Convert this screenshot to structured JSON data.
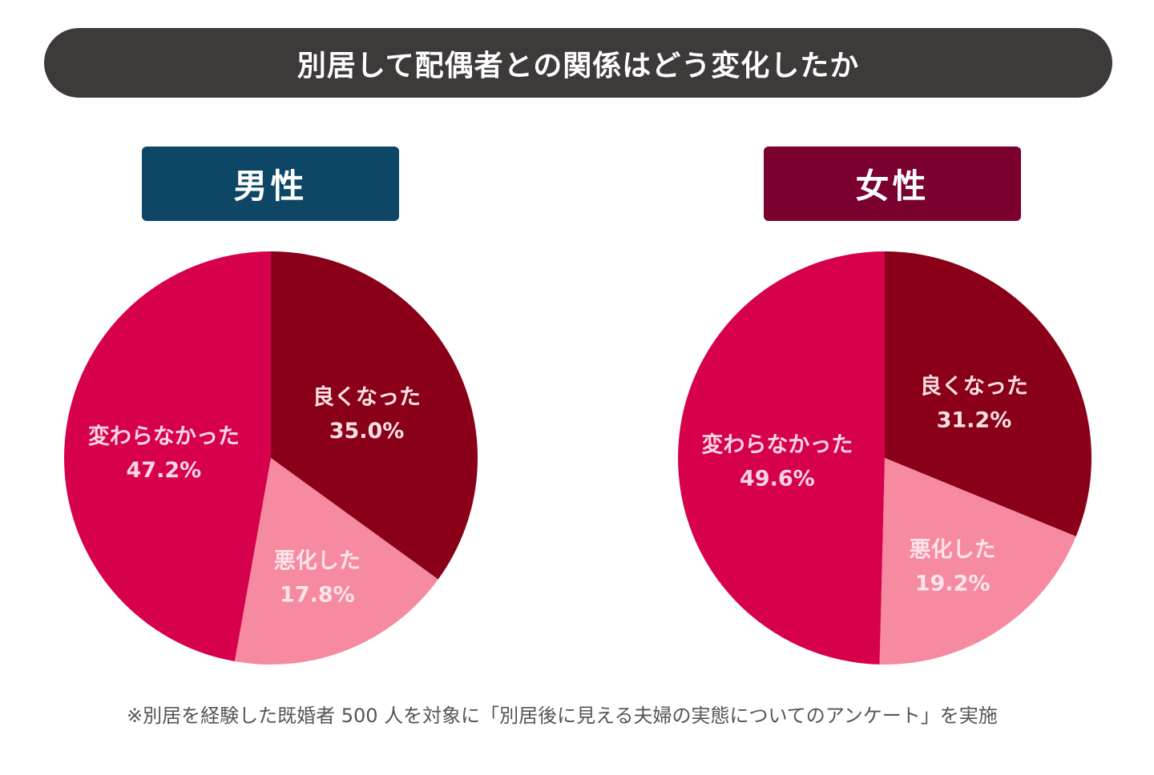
{
  "chart_data": [
    {
      "type": "pie",
      "title": "男性",
      "title_color": "#0e4766",
      "categories": [
        "良くなった",
        "悪化した",
        "変わらなかった"
      ],
      "values": [
        35.0,
        17.8,
        47.2
      ],
      "value_labels": [
        "35.0%",
        "17.8%",
        "47.2%"
      ],
      "colors": [
        "#8a0018",
        "#f58aa0",
        "#d6004c"
      ],
      "start": "12 o'clock, clockwise"
    },
    {
      "type": "pie",
      "title": "女性",
      "title_color": "#7a0030",
      "categories": [
        "良くなった",
        "悪化した",
        "変わらなかった"
      ],
      "values": [
        31.2,
        19.2,
        49.6
      ],
      "value_labels": [
        "31.2%",
        "19.2%",
        "49.6%"
      ],
      "colors": [
        "#8a0018",
        "#f58aa0",
        "#d6004c"
      ],
      "start": "12 o'clock, clockwise"
    }
  ],
  "header": {
    "title": "別居して配偶者との関係はどう変化したか"
  },
  "footnote": "※別居を経験した既婚者 500 人を対象に「別居後に見える夫婦の実態についてのアンケート」を実施"
}
